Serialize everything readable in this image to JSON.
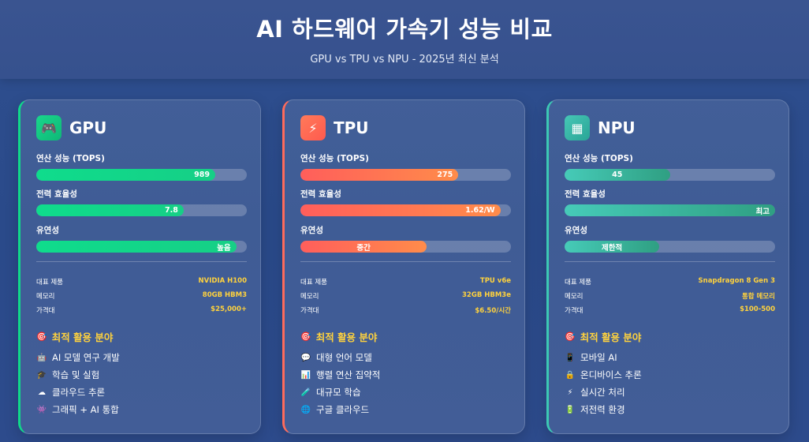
{
  "header": {
    "title": "AI 하드웨어 가속기 성능 비교",
    "subtitle": "GPU vs TPU vs NPU - 2025년 최신 분석"
  },
  "labels": {
    "performance": "연산 성능 (TOPS)",
    "efficiency": "전력 효율성",
    "flexibility": "유연성",
    "product": "대표 제품",
    "memory": "메모리",
    "price": "가격대",
    "best_use": "최적 활용 분야"
  },
  "cards": [
    {
      "name": "GPU",
      "icon": "gamepad-icon",
      "accent": "#10d98a",
      "performance": {
        "text": "989",
        "level": 0.85
      },
      "efficiency": {
        "text": "7.8",
        "level": 0.7
      },
      "flexibility": {
        "text": "높음",
        "level": 0.95
      },
      "specs": {
        "product": "NVIDIA H100",
        "memory": "80GB HBM3",
        "price": "$25,000+"
      },
      "uses": [
        {
          "icon": "robot-icon",
          "text": "AI 모델 연구 개발"
        },
        {
          "icon": "graduation-cap-icon",
          "text": "학습 및 실험"
        },
        {
          "icon": "cloud-icon",
          "text": "클라우드 추론"
        },
        {
          "icon": "controller-icon",
          "text": "그래픽 + AI 통합"
        }
      ]
    },
    {
      "name": "TPU",
      "icon": "lightning-icon",
      "accent": "#ff6b5b",
      "performance": {
        "text": "275",
        "level": 0.75
      },
      "efficiency": {
        "text": "1.62/W",
        "level": 0.95
      },
      "flexibility": {
        "text": "중간",
        "level": 0.6
      },
      "specs": {
        "product": "TPU v6e",
        "memory": "32GB HBM3e",
        "price": "$6.50/시간"
      },
      "uses": [
        {
          "icon": "chat-icon",
          "text": "대형 언어 모델"
        },
        {
          "icon": "bar-chart-icon",
          "text": "행렬 연산 집약적"
        },
        {
          "icon": "flask-icon",
          "text": "대규모 학습"
        },
        {
          "icon": "globe-icon",
          "text": "구글 클라우드"
        }
      ]
    },
    {
      "name": "NPU",
      "icon": "tablet-icon",
      "accent": "#3cc8b4",
      "performance": {
        "text": "45",
        "level": 0.5
      },
      "efficiency": {
        "text": "최고",
        "level": 1.0
      },
      "flexibility": {
        "text": "제한적",
        "level": 0.45
      },
      "specs": {
        "product": "Snapdragon 8 Gen 3",
        "memory": "통합 메모리",
        "price": "$100-500"
      },
      "uses": [
        {
          "icon": "mobile-icon",
          "text": "모바일 AI"
        },
        {
          "icon": "lock-icon",
          "text": "온디바이스 추론"
        },
        {
          "icon": "lightning-icon",
          "text": "실시간 처리"
        },
        {
          "icon": "battery-icon",
          "text": "저전력 환경"
        }
      ]
    }
  ]
}
